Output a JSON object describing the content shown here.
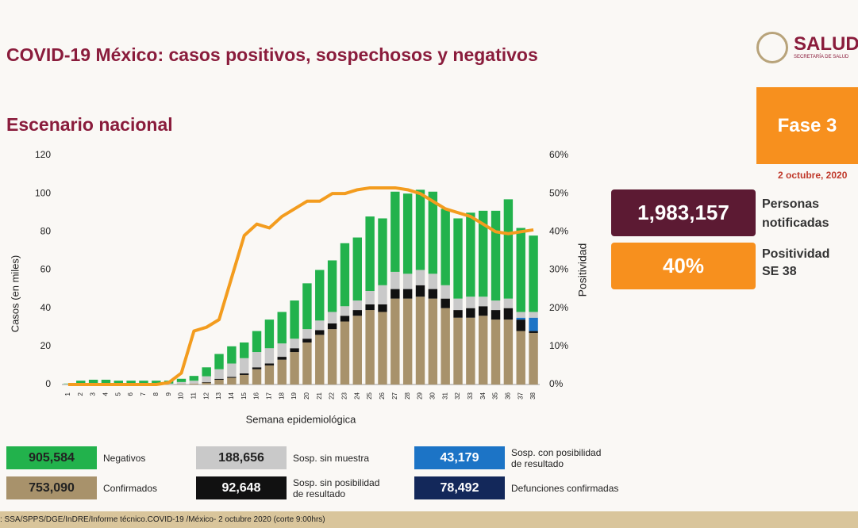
{
  "page": {
    "title": "COVID-19 México: casos positivos, sospechosos y negativos",
    "subtitle": "Escenario nacional",
    "logo": "SALUD",
    "logo_sub": "SECRETARÍA DE SALUD",
    "phase": "Fase 3",
    "date": "2 octubre, 2020",
    "notified_value": "1,983,157",
    "notified_label": "Personas notificadas",
    "positivity_value": "40%",
    "positivity_label": "Positividad SE 38",
    "source": ": SSA/SPPS/DGE/InDRE/Informe técnico.COVID-19 /México- 2 octubre 2020 (corte 9:00hrs)"
  },
  "chart_data": {
    "type": "bar",
    "stacked": true,
    "xlabel": "Semana epidemiológica",
    "ylabel": "Casos (en miles)",
    "y2label": "Positividad",
    "categories": [
      "1",
      "2",
      "3",
      "4",
      "5",
      "6",
      "7",
      "8",
      "9",
      "10",
      "11",
      "12",
      "13",
      "14",
      "15",
      "16",
      "17",
      "18",
      "19",
      "20",
      "21",
      "22",
      "23",
      "24",
      "25",
      "26",
      "27",
      "28",
      "29",
      "30",
      "31",
      "32",
      "33",
      "34",
      "35",
      "36",
      "37",
      "38"
    ],
    "ylim": [
      0,
      120
    ],
    "yticks": [
      0,
      20,
      40,
      60,
      80,
      100,
      120
    ],
    "y2lim": [
      0,
      60
    ],
    "y2ticks": [
      {
        "value": 0,
        "label": "0%"
      },
      {
        "value": 10,
        "label": "10%"
      },
      {
        "value": 20,
        "label": "20%"
      },
      {
        "value": 30,
        "label": "30%"
      },
      {
        "value": 40,
        "label": "40%"
      },
      {
        "value": 50,
        "label": "50%"
      },
      {
        "value": 60,
        "label": "60%"
      }
    ],
    "series": [
      {
        "name": "Confirmados",
        "color": "#a8926b",
        "total": {
          "value": 753090,
          "label": "753,090"
        },
        "values": [
          0,
          0,
          0,
          0,
          0,
          0,
          0,
          0,
          0,
          0.3,
          0.5,
          1,
          2.5,
          3.5,
          5,
          8,
          10,
          13,
          17,
          22,
          26,
          29,
          33,
          36,
          39,
          38,
          45,
          45,
          46,
          45,
          40,
          35,
          35,
          36,
          34,
          34,
          28,
          27
        ]
      },
      {
        "name": "Sosp. sin posibilidad de resultado",
        "color": "#111111",
        "total": {
          "value": 92648,
          "label": "92,648"
        },
        "values": [
          0,
          0,
          0,
          0,
          0,
          0,
          0,
          0,
          0,
          0,
          0,
          0.3,
          0.5,
          0.5,
          0.8,
          1,
          1,
          1.5,
          2,
          2,
          2.5,
          3,
          3,
          3,
          3,
          4,
          5,
          5,
          6,
          5,
          5,
          4,
          5,
          5,
          5,
          6,
          6,
          1
        ]
      },
      {
        "name": "Sosp. con posibilidad de resultado",
        "color": "#1c74c6",
        "total": {
          "value": 43179,
          "label": "43,179"
        },
        "values": [
          0,
          0,
          0,
          0,
          0,
          0,
          0,
          0,
          0,
          0,
          0,
          0,
          0,
          0,
          0,
          0,
          0,
          0,
          0,
          0,
          0,
          0,
          0,
          0,
          0,
          0,
          0,
          0,
          0,
          0,
          0,
          0,
          0,
          0,
          0,
          0,
          1,
          7
        ]
      },
      {
        "name": "Sosp. sin muestra",
        "color": "#c9c9c9",
        "total": {
          "value": 188656,
          "label": "188,656"
        },
        "values": [
          0.3,
          0.5,
          0.5,
          0.5,
          0.5,
          0.5,
          0.5,
          0.5,
          0.5,
          1,
          1.5,
          3,
          5,
          7,
          8,
          8,
          8,
          7,
          5,
          5,
          5,
          6,
          5,
          5,
          7,
          10,
          9,
          8,
          8,
          8,
          7,
          6,
          6,
          5,
          5,
          5,
          3,
          3
        ]
      },
      {
        "name": "Negativos",
        "color": "#22b24c",
        "total": {
          "value": 905584,
          "label": "905,584"
        },
        "values": [
          0.2,
          1.5,
          2,
          2,
          1.5,
          1.5,
          1.5,
          1.5,
          1.5,
          1.7,
          2.5,
          4.7,
          8,
          9,
          8.2,
          11,
          15,
          16.5,
          20,
          24,
          26.5,
          27,
          33,
          33,
          39,
          35,
          42,
          42,
          42,
          43,
          40,
          42,
          44,
          45,
          47,
          52,
          44,
          40
        ]
      }
    ],
    "line": {
      "axis": "y2",
      "color": "#f39c1e",
      "values": [
        0,
        0,
        0,
        0,
        0,
        0,
        0,
        0,
        0.5,
        3,
        14,
        15,
        17,
        28,
        39,
        42,
        41,
        44,
        46,
        48,
        48,
        50,
        50,
        51,
        51.5,
        51.5,
        51.5,
        51,
        50,
        48,
        46,
        45,
        44,
        42,
        40,
        39.5,
        40,
        40.5
      ]
    },
    "other_totals": [
      {
        "name": "Defunciones confirmadas",
        "color": "#13285a",
        "value": 78492,
        "label": "78,492"
      }
    ]
  }
}
